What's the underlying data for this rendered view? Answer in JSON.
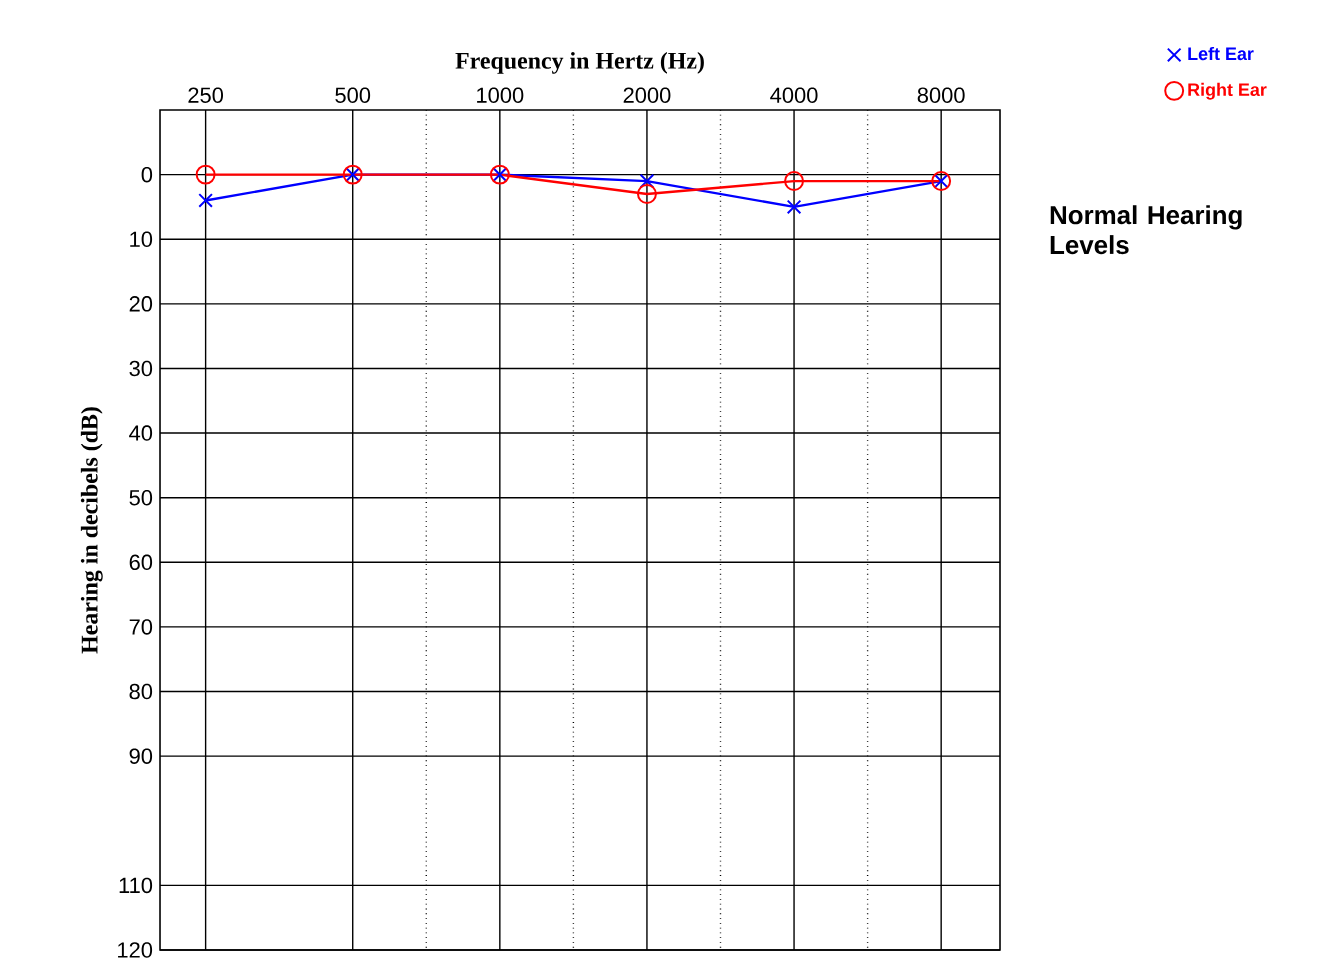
{
  "chart_data": {
    "type": "line",
    "xlabel": "Frequency in Hertz (Hz)",
    "ylabel": "Hearing in decibels (dB)",
    "categories": [
      "250",
      "500",
      "1000",
      "2000",
      "4000",
      "8000"
    ],
    "series": [
      {
        "name": "Left Ear",
        "color": "#0000ff",
        "marker": "cross",
        "values": [
          4,
          0,
          0,
          1,
          5,
          1
        ]
      },
      {
        "name": "Right Ear",
        "color": "#ff0000",
        "marker": "circle",
        "values": [
          0,
          0,
          0,
          3,
          1,
          1
        ]
      }
    ],
    "ylim": [
      120,
      -10
    ],
    "yticks": [
      0,
      10,
      20,
      30,
      40,
      50,
      60,
      70,
      80,
      90,
      110,
      120
    ],
    "grid": true,
    "legend": "top right",
    "annotations": [
      "Normal Hearing Levels"
    ]
  }
}
